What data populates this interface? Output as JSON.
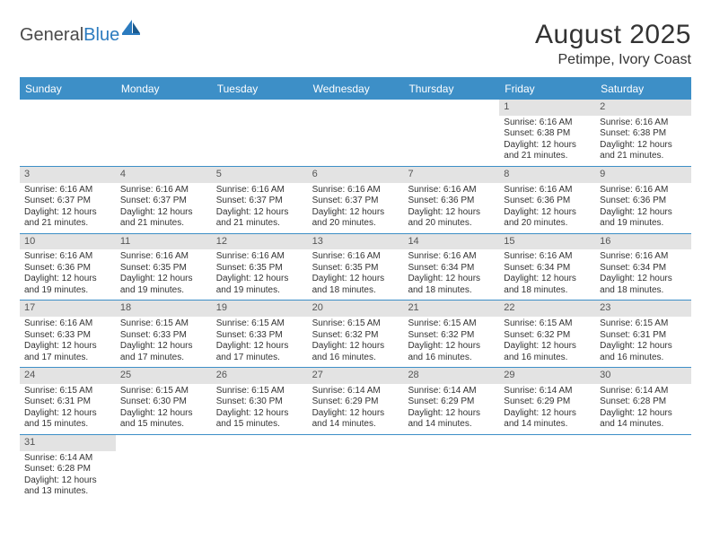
{
  "logo": {
    "text1": "General",
    "text2": "Blue"
  },
  "title": "August 2025",
  "subtitle": "Petimpe, Ivory Coast",
  "colors": {
    "header_bg": "#3d8fc7",
    "header_text": "#ffffff",
    "daynum_bg": "#e3e3e3",
    "text": "#333333",
    "logo_gray": "#4a4a4a",
    "logo_blue": "#2b7bbf",
    "page_bg": "#ffffff"
  },
  "day_names": [
    "Sunday",
    "Monday",
    "Tuesday",
    "Wednesday",
    "Thursday",
    "Friday",
    "Saturday"
  ],
  "weeks": [
    [
      null,
      null,
      null,
      null,
      null,
      {
        "n": "1",
        "rise": "6:16 AM",
        "set": "6:38 PM",
        "dl": "12 hours and 21 minutes."
      },
      {
        "n": "2",
        "rise": "6:16 AM",
        "set": "6:38 PM",
        "dl": "12 hours and 21 minutes."
      }
    ],
    [
      {
        "n": "3",
        "rise": "6:16 AM",
        "set": "6:37 PM",
        "dl": "12 hours and 21 minutes."
      },
      {
        "n": "4",
        "rise": "6:16 AM",
        "set": "6:37 PM",
        "dl": "12 hours and 21 minutes."
      },
      {
        "n": "5",
        "rise": "6:16 AM",
        "set": "6:37 PM",
        "dl": "12 hours and 21 minutes."
      },
      {
        "n": "6",
        "rise": "6:16 AM",
        "set": "6:37 PM",
        "dl": "12 hours and 20 minutes."
      },
      {
        "n": "7",
        "rise": "6:16 AM",
        "set": "6:36 PM",
        "dl": "12 hours and 20 minutes."
      },
      {
        "n": "8",
        "rise": "6:16 AM",
        "set": "6:36 PM",
        "dl": "12 hours and 20 minutes."
      },
      {
        "n": "9",
        "rise": "6:16 AM",
        "set": "6:36 PM",
        "dl": "12 hours and 19 minutes."
      }
    ],
    [
      {
        "n": "10",
        "rise": "6:16 AM",
        "set": "6:36 PM",
        "dl": "12 hours and 19 minutes."
      },
      {
        "n": "11",
        "rise": "6:16 AM",
        "set": "6:35 PM",
        "dl": "12 hours and 19 minutes."
      },
      {
        "n": "12",
        "rise": "6:16 AM",
        "set": "6:35 PM",
        "dl": "12 hours and 19 minutes."
      },
      {
        "n": "13",
        "rise": "6:16 AM",
        "set": "6:35 PM",
        "dl": "12 hours and 18 minutes."
      },
      {
        "n": "14",
        "rise": "6:16 AM",
        "set": "6:34 PM",
        "dl": "12 hours and 18 minutes."
      },
      {
        "n": "15",
        "rise": "6:16 AM",
        "set": "6:34 PM",
        "dl": "12 hours and 18 minutes."
      },
      {
        "n": "16",
        "rise": "6:16 AM",
        "set": "6:34 PM",
        "dl": "12 hours and 18 minutes."
      }
    ],
    [
      {
        "n": "17",
        "rise": "6:16 AM",
        "set": "6:33 PM",
        "dl": "12 hours and 17 minutes."
      },
      {
        "n": "18",
        "rise": "6:15 AM",
        "set": "6:33 PM",
        "dl": "12 hours and 17 minutes."
      },
      {
        "n": "19",
        "rise": "6:15 AM",
        "set": "6:33 PM",
        "dl": "12 hours and 17 minutes."
      },
      {
        "n": "20",
        "rise": "6:15 AM",
        "set": "6:32 PM",
        "dl": "12 hours and 16 minutes."
      },
      {
        "n": "21",
        "rise": "6:15 AM",
        "set": "6:32 PM",
        "dl": "12 hours and 16 minutes."
      },
      {
        "n": "22",
        "rise": "6:15 AM",
        "set": "6:32 PM",
        "dl": "12 hours and 16 minutes."
      },
      {
        "n": "23",
        "rise": "6:15 AM",
        "set": "6:31 PM",
        "dl": "12 hours and 16 minutes."
      }
    ],
    [
      {
        "n": "24",
        "rise": "6:15 AM",
        "set": "6:31 PM",
        "dl": "12 hours and 15 minutes."
      },
      {
        "n": "25",
        "rise": "6:15 AM",
        "set": "6:30 PM",
        "dl": "12 hours and 15 minutes."
      },
      {
        "n": "26",
        "rise": "6:15 AM",
        "set": "6:30 PM",
        "dl": "12 hours and 15 minutes."
      },
      {
        "n": "27",
        "rise": "6:14 AM",
        "set": "6:29 PM",
        "dl": "12 hours and 14 minutes."
      },
      {
        "n": "28",
        "rise": "6:14 AM",
        "set": "6:29 PM",
        "dl": "12 hours and 14 minutes."
      },
      {
        "n": "29",
        "rise": "6:14 AM",
        "set": "6:29 PM",
        "dl": "12 hours and 14 minutes."
      },
      {
        "n": "30",
        "rise": "6:14 AM",
        "set": "6:28 PM",
        "dl": "12 hours and 14 minutes."
      }
    ],
    [
      {
        "n": "31",
        "rise": "6:14 AM",
        "set": "6:28 PM",
        "dl": "12 hours and 13 minutes."
      },
      null,
      null,
      null,
      null,
      null,
      null
    ]
  ],
  "labels": {
    "sunrise_prefix": "Sunrise: ",
    "sunset_prefix": "Sunset: ",
    "daylight_prefix": "Daylight: "
  }
}
